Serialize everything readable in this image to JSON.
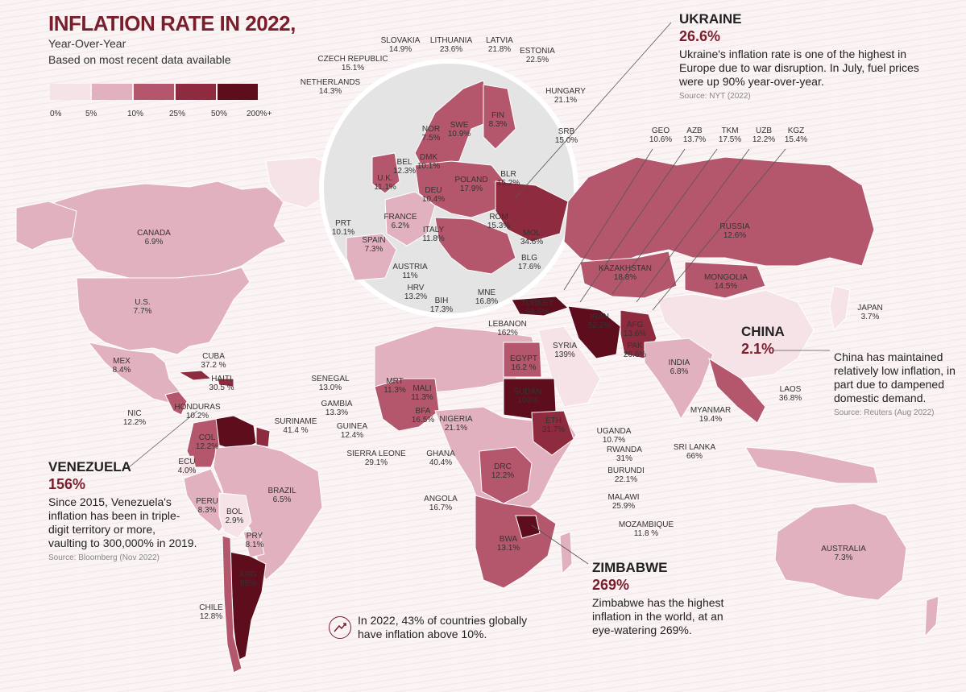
{
  "title": "INFLATION RATE IN 2022,",
  "subtitle_1": "Year-Over-Year",
  "subtitle_2": "Based on most recent data available",
  "legend": {
    "colors": [
      "#f6e3e8",
      "#e2b1c0",
      "#b4576c",
      "#8f2b3e",
      "#5e0d1d"
    ],
    "labels": [
      "0%",
      "5%",
      "10%",
      "25%",
      "50%",
      "200%+"
    ]
  },
  "countries": [
    {
      "id": "ukraine-label",
      "name": "",
      "value": "",
      "fill": "#8f2b3e"
    },
    {
      "id": "slovakia",
      "name": "SLOVAKIA",
      "value": "14.9%"
    },
    {
      "id": "lithuania",
      "name": "LITHUANIA",
      "value": "23.6%"
    },
    {
      "id": "latvia",
      "name": "LATVIA",
      "value": "21.8%"
    },
    {
      "id": "estonia",
      "name": "ESTONIA",
      "value": "22.5%"
    },
    {
      "id": "czech",
      "name": "CZECH REPUBLIC",
      "value": "15.1%"
    },
    {
      "id": "netherlands",
      "name": "NETHERLANDS",
      "value": "14.3%"
    },
    {
      "id": "hungary",
      "name": "HUNGARY",
      "value": "21.1%"
    },
    {
      "id": "nor",
      "name": "NOR",
      "value": "7.5%"
    },
    {
      "id": "swe",
      "name": "SWE",
      "value": "10.9%"
    },
    {
      "id": "fin",
      "name": "FIN",
      "value": "8.3%"
    },
    {
      "id": "srb",
      "name": "SRB",
      "value": "15.0%"
    },
    {
      "id": "dmk",
      "name": "DMK",
      "value": "10.1%"
    },
    {
      "id": "bel",
      "name": "BEL",
      "value": "12.3%"
    },
    {
      "id": "uk",
      "name": "U.K.",
      "value": "11.1%"
    },
    {
      "id": "deu",
      "name": "DEU",
      "value": "10.4%"
    },
    {
      "id": "poland",
      "name": "POLAND",
      "value": "17.9%"
    },
    {
      "id": "blr",
      "name": "BLR",
      "value": "15.2%"
    },
    {
      "id": "france",
      "name": "FRANCE",
      "value": "6.2%"
    },
    {
      "id": "rom",
      "name": "ROM",
      "value": "15.3%"
    },
    {
      "id": "prt",
      "name": "PRT",
      "value": "10.1%"
    },
    {
      "id": "italy",
      "name": "ITALY",
      "value": "11.8%"
    },
    {
      "id": "mol",
      "name": "MOL",
      "value": "34.6%"
    },
    {
      "id": "spain",
      "name": "SPAIN",
      "value": "7.3%"
    },
    {
      "id": "blg",
      "name": "BLG",
      "value": "17.6%"
    },
    {
      "id": "austria",
      "name": "AUSTRIA",
      "value": "11%"
    },
    {
      "id": "hrv",
      "name": "HRV",
      "value": "13.2%"
    },
    {
      "id": "mne",
      "name": "MNE",
      "value": "16.8%"
    },
    {
      "id": "bih",
      "name": "BIH",
      "value": "17.3%"
    },
    {
      "id": "geo",
      "name": "GEO",
      "value": "10.6%"
    },
    {
      "id": "azb",
      "name": "AZB",
      "value": "13.7%"
    },
    {
      "id": "tkm",
      "name": "TKM",
      "value": "17.5%"
    },
    {
      "id": "uzb",
      "name": "UZB",
      "value": "12.2%"
    },
    {
      "id": "kgz",
      "name": "KGZ",
      "value": "15.4%"
    },
    {
      "id": "russia",
      "name": "RUSSIA",
      "value": "12.6%"
    },
    {
      "id": "canada",
      "name": "CANADA",
      "value": "6.9%"
    },
    {
      "id": "kazakhstan",
      "name": "KAZAKHSTAN",
      "value": "18.8%"
    },
    {
      "id": "mongolia",
      "name": "MONGOLIA",
      "value": "14.5%"
    },
    {
      "id": "us",
      "name": "U.S.",
      "value": "7.7%"
    },
    {
      "id": "turkey",
      "name": "TURKEY",
      "value": "88.5%"
    },
    {
      "id": "japan",
      "name": "JAPAN",
      "value": "3.7%"
    },
    {
      "id": "lebanon",
      "name": "LEBANON",
      "value": "162%"
    },
    {
      "id": "iran",
      "name": "IRAN",
      "value": "52.2%"
    },
    {
      "id": "afg",
      "name": "AFG",
      "value": "13.6%"
    },
    {
      "id": "syria",
      "name": "SYRIA",
      "value": "139%"
    },
    {
      "id": "pak",
      "name": "PAK",
      "value": "26.6%"
    },
    {
      "id": "cuba",
      "name": "CUBA",
      "value": "37.2 %"
    },
    {
      "id": "egypt",
      "name": "EGYPT",
      "value": "16.2 %"
    },
    {
      "id": "india",
      "name": "INDIA",
      "value": "6.8%"
    },
    {
      "id": "mex",
      "name": "MEX",
      "value": "8.4%"
    },
    {
      "id": "haiti",
      "name": "HAITI",
      "value": "30.5 %"
    },
    {
      "id": "senegal",
      "name": "SENEGAL",
      "value": "13.0%"
    },
    {
      "id": "mrt",
      "name": "MRT",
      "value": "11.3%"
    },
    {
      "id": "mali",
      "name": "MALI",
      "value": "11.3%"
    },
    {
      "id": "sudan",
      "name": "SUDAN",
      "value": "103%"
    },
    {
      "id": "laos",
      "name": "LAOS",
      "value": "36.8%"
    },
    {
      "id": "honduras",
      "name": "HONDURAS",
      "value": "10.2%"
    },
    {
      "id": "gambia",
      "name": "GAMBIA",
      "value": "13.3%"
    },
    {
      "id": "bfa",
      "name": "BFA",
      "value": "16.5%"
    },
    {
      "id": "nigeria",
      "name": "NIGERIA",
      "value": "21.1%"
    },
    {
      "id": "nic",
      "name": "NIC",
      "value": "12.2%"
    },
    {
      "id": "suriname",
      "name": "SURINAME",
      "value": "41.4 %"
    },
    {
      "id": "eth",
      "name": "ETH",
      "value": "31.7%"
    },
    {
      "id": "myanmar",
      "name": "MYANMAR",
      "value": "19.4%"
    },
    {
      "id": "guinea",
      "name": "GUINEA",
      "value": "12.4%"
    },
    {
      "id": "col",
      "name": "COL",
      "value": "12.2%"
    },
    {
      "id": "uganda",
      "name": "UGANDA",
      "value": "10.7%"
    },
    {
      "id": "srilanka",
      "name": "SRI LANKA",
      "value": "66%"
    },
    {
      "id": "sierraleone",
      "name": "SIERRA LEONE",
      "value": "29.1%"
    },
    {
      "id": "ghana",
      "name": "GHANA",
      "value": "40.4%"
    },
    {
      "id": "rwanda",
      "name": "RWANDA",
      "value": "31%"
    },
    {
      "id": "ecu",
      "name": "ECU",
      "value": "4.0%"
    },
    {
      "id": "drc",
      "name": "DRC",
      "value": "12.2%"
    },
    {
      "id": "burundi",
      "name": "BURUNDI",
      "value": "22.1%"
    },
    {
      "id": "brazil",
      "name": "BRAZIL",
      "value": "6.5%"
    },
    {
      "id": "angola",
      "name": "ANGOLA",
      "value": "16.7%"
    },
    {
      "id": "malawi",
      "name": "MALAWI",
      "value": "25.9%"
    },
    {
      "id": "peru",
      "name": "PERU",
      "value": "8.3%"
    },
    {
      "id": "bol",
      "name": "BOL",
      "value": "2.9%"
    },
    {
      "id": "mozambique",
      "name": "MOZAMBIQUE",
      "value": "11.8 %"
    },
    {
      "id": "pry",
      "name": "PRY",
      "value": "8.1%"
    },
    {
      "id": "bwa",
      "name": "BWA",
      "value": "13.1%"
    },
    {
      "id": "australia",
      "name": "AUSTRALIA",
      "value": "7.3%"
    },
    {
      "id": "arg",
      "name": "ARG",
      "value": "88%"
    },
    {
      "id": "chile",
      "name": "CHILE",
      "value": "12.8%"
    }
  ],
  "callouts": {
    "ukraine": {
      "name": "UKRAINE",
      "pct": "26.6%",
      "body": "Ukraine's inflation rate is one of the highest in Europe due to war disruption. In July, fuel prices were up 90% year-over-year.",
      "source": "Source: NYT (2022)"
    },
    "china": {
      "name": "CHINA",
      "pct": "2.1%",
      "body": "China has maintained relatively low inflation, in part due to dampened domestic demand.",
      "source": "Source: Reuters (Aug 2022)"
    },
    "venezuela": {
      "name": "VENEZUELA",
      "pct": "156%",
      "body": "Since 2015, Venezuela's inflation has been in triple-digit territory or more, vaulting to 300,000% in 2019.",
      "source": "Source: Bloomberg (Nov 2022)"
    },
    "zimbabwe": {
      "name": "ZIMBABWE",
      "pct": "269%",
      "body": "Zimbabwe has the highest inflation in the world, at an eye-watering 269%."
    }
  },
  "note": "In 2022, 43% of countries globally have inflation above 10%."
}
